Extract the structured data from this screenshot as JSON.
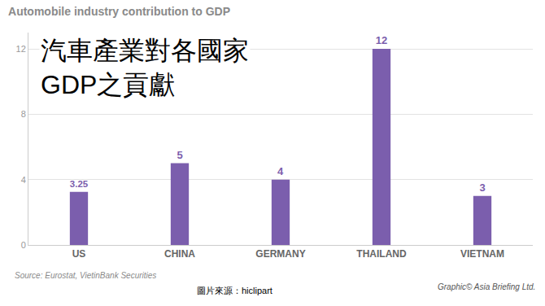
{
  "chart_data": {
    "type": "bar",
    "title": "Automobile industry contribution to GDP",
    "subtitle": "汽車產業對各國家\nGDP之貢獻",
    "categories": [
      "US",
      "CHINA",
      "GERMANY",
      "THAILAND",
      "VIETNAM"
    ],
    "values": [
      3.25,
      5,
      4,
      12,
      3
    ],
    "color": "#7b5ead",
    "ylim": [
      0,
      13
    ],
    "yticks": [
      0,
      4,
      8,
      12
    ],
    "grid": true,
    "data_labels": true,
    "annotations": [
      "Source: Eurostat, VietinBank Securities",
      "圖片來源：hiclipart",
      "Graphic© Asia Briefing Ltd."
    ]
  }
}
